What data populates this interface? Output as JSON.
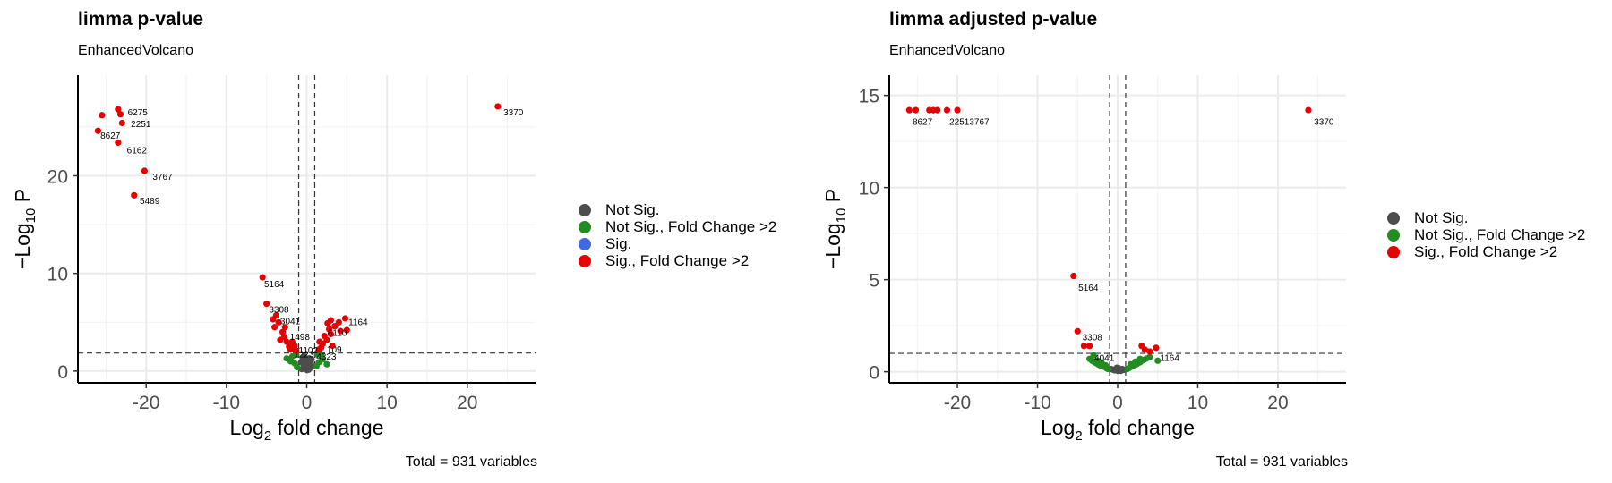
{
  "chart_data": [
    {
      "type": "scatter",
      "title": "limma p-value",
      "subtitle": "EnhancedVolcano",
      "caption": "Total = 931 variables",
      "xlabel_main": "Log",
      "xlabel_sub": "2",
      "xlabel_tail": " fold change",
      "ylabel_main": "−Log",
      "ylabel_sub": "10",
      "ylabel_tail": " P",
      "xlim": [
        -28.5,
        28.5
      ],
      "ylim": [
        -1.2,
        30.3
      ],
      "xticks": [
        -20,
        -10,
        0,
        10,
        20
      ],
      "yticks": [
        0,
        10,
        20
      ],
      "fc_cutoff": [
        -1,
        1
      ],
      "p_cutoff": 1.85,
      "legend": [
        {
          "label": "Not Sig.",
          "color": "#4d4d4d"
        },
        {
          "label": "Not Sig., Fold Change >2",
          "color": "#228b22"
        },
        {
          "label": "Sig.",
          "color": "#4169e1"
        },
        {
          "label": "Sig., Fold Change >2",
          "color": "#e60000"
        }
      ],
      "series": [
        {
          "name": "Not Sig.",
          "color": "#4d4d4d",
          "points": [
            [
              0,
              0.2
            ],
            [
              0.2,
              0.5
            ],
            [
              -0.2,
              0.6
            ],
            [
              0.4,
              0.3
            ],
            [
              -0.4,
              0.4
            ],
            [
              0.1,
              0.9
            ],
            [
              -0.1,
              1.1
            ],
            [
              0.5,
              0.8
            ],
            [
              -0.6,
              0.2
            ],
            [
              0.3,
              1.3
            ],
            [
              -0.3,
              1.5
            ],
            [
              0.7,
              0.5
            ],
            [
              -0.7,
              0.9
            ],
            [
              0.05,
              0.1
            ],
            [
              0.25,
              0.15
            ],
            [
              -0.25,
              0.25
            ],
            [
              0.6,
              1.2
            ],
            [
              -0.5,
              1.3
            ]
          ]
        },
        {
          "name": "Not Sig., Fold Change >2",
          "color": "#228b22",
          "points": [
            [
              -1.2,
              0.4
            ],
            [
              -1.5,
              0.8
            ],
            [
              -2.0,
              1.0
            ],
            [
              -1.8,
              1.5
            ],
            [
              1.2,
              0.5
            ],
            [
              1.5,
              0.9
            ],
            [
              2.0,
              1.2
            ],
            [
              1.8,
              1.6
            ],
            [
              2.5,
              0.7
            ],
            [
              -2.5,
              1.3
            ],
            [
              1.3,
              1.7
            ],
            [
              -1.3,
              1.7
            ]
          ]
        },
        {
          "name": "Sig., Fold Change >2",
          "color": "#e60000",
          "points": [
            [
              -23.5,
              26.8
            ],
            [
              -25.5,
              26.2
            ],
            [
              -23.2,
              26.3
            ],
            [
              -23.0,
              25.4
            ],
            [
              -26.0,
              24.6
            ],
            [
              -23.5,
              23.4
            ],
            [
              -20.2,
              20.5
            ],
            [
              -21.5,
              18.0
            ],
            [
              -5.5,
              9.6
            ],
            [
              -5.0,
              6.9
            ],
            [
              -3.8,
              5.7
            ],
            [
              -3.5,
              5.0
            ],
            [
              -4.0,
              4.5
            ],
            [
              -3.0,
              4.0
            ],
            [
              -2.8,
              3.5
            ],
            [
              -2.5,
              3.0
            ],
            [
              -3.3,
              3.2
            ],
            [
              -2.2,
              2.5
            ],
            [
              -2.0,
              2.2
            ],
            [
              -1.5,
              2.6
            ],
            [
              -1.8,
              3.0
            ],
            [
              -2.7,
              4.5
            ],
            [
              -4.2,
              5.3
            ],
            [
              -1.3,
              2.1
            ],
            [
              1.5,
              2.2
            ],
            [
              2.0,
              2.8
            ],
            [
              2.5,
              3.2
            ],
            [
              3.0,
              3.8
            ],
            [
              3.5,
              4.6
            ],
            [
              4.0,
              5.0
            ],
            [
              3.0,
              5.2
            ],
            [
              2.8,
              4.3
            ],
            [
              2.2,
              3.6
            ],
            [
              1.6,
              3.0
            ],
            [
              3.2,
              2.6
            ],
            [
              5.0,
              4.2
            ],
            [
              4.8,
              5.4
            ],
            [
              4.2,
              4.1
            ],
            [
              1.8,
              2.4
            ],
            [
              2.6,
              4.9
            ],
            [
              23.8,
              27.1
            ]
          ]
        }
      ],
      "labels": [
        {
          "text": "6275",
          "x": -22.3,
          "y": 26.2
        },
        {
          "text": "2251",
          "x": -21.9,
          "y": 25.0
        },
        {
          "text": "8627",
          "x": -25.7,
          "y": 23.8
        },
        {
          "text": "6162",
          "x": -22.4,
          "y": 22.3
        },
        {
          "text": "3767",
          "x": -19.2,
          "y": 19.6
        },
        {
          "text": "5489",
          "x": -20.8,
          "y": 17.1
        },
        {
          "text": "3370",
          "x": 24.5,
          "y": 26.2
        },
        {
          "text": "5164",
          "x": -5.3,
          "y": 8.6
        },
        {
          "text": "3308",
          "x": -4.7,
          "y": 6.0
        },
        {
          "text": "3041",
          "x": -3.3,
          "y": 4.8
        },
        {
          "text": "1164",
          "x": 5.2,
          "y": 4.7
        },
        {
          "text": "6110",
          "x": 2.6,
          "y": 3.6
        },
        {
          "text": "1498",
          "x": -2.1,
          "y": 3.2
        },
        {
          "text": "109",
          "x": 2.5,
          "y": 1.9
        },
        {
          "text": "4323",
          "x": 1.2,
          "y": 1.2
        },
        {
          "text": "1223",
          "x": -1.6,
          "y": 1.4
        },
        {
          "text": "1102",
          "x": -1.0,
          "y": 1.8
        }
      ]
    },
    {
      "type": "scatter",
      "title": "limma adjusted p-value",
      "subtitle": "EnhancedVolcano",
      "caption": "Total = 931 variables",
      "xlabel_main": "Log",
      "xlabel_sub": "2",
      "xlabel_tail": " fold change",
      "ylabel_main": "−Log",
      "ylabel_sub": "10",
      "ylabel_tail": " P",
      "xlim": [
        -28.5,
        28.5
      ],
      "ylim": [
        -0.6,
        16.1
      ],
      "xticks": [
        -20,
        -10,
        0,
        10,
        20
      ],
      "yticks": [
        0,
        5,
        10,
        15
      ],
      "fc_cutoff": [
        -1,
        1
      ],
      "p_cutoff": 1.0,
      "legend": [
        {
          "label": "Not Sig.",
          "color": "#4d4d4d"
        },
        {
          "label": "Not Sig., Fold Change >2",
          "color": "#228b22"
        },
        {
          "label": "Sig., Fold Change >2",
          "color": "#e60000"
        }
      ],
      "series": [
        {
          "name": "Not Sig.",
          "color": "#4d4d4d",
          "points": [
            [
              0,
              0.05
            ],
            [
              0.2,
              0.1
            ],
            [
              -0.2,
              0.1
            ],
            [
              0.4,
              0.05
            ],
            [
              -0.4,
              0.08
            ],
            [
              0.6,
              0.15
            ],
            [
              -0.6,
              0.12
            ],
            [
              0.1,
              0.2
            ],
            [
              -0.1,
              0.22
            ],
            [
              0.8,
              0.1
            ],
            [
              -0.8,
              0.15
            ]
          ]
        },
        {
          "name": "Not Sig., Fold Change >2",
          "color": "#228b22",
          "points": [
            [
              -1.2,
              0.15
            ],
            [
              -1.4,
              0.2
            ],
            [
              -1.6,
              0.25
            ],
            [
              -1.8,
              0.3
            ],
            [
              -2.0,
              0.32
            ],
            [
              -2.2,
              0.35
            ],
            [
              -2.4,
              0.4
            ],
            [
              -2.6,
              0.45
            ],
            [
              -2.8,
              0.5
            ],
            [
              -3.0,
              0.55
            ],
            [
              -3.2,
              0.6
            ],
            [
              -3.5,
              0.7
            ],
            [
              -1.5,
              0.35
            ],
            [
              -2.0,
              0.5
            ],
            [
              -2.5,
              0.6
            ],
            [
              1.2,
              0.15
            ],
            [
              1.4,
              0.2
            ],
            [
              1.6,
              0.25
            ],
            [
              1.8,
              0.3
            ],
            [
              2.0,
              0.35
            ],
            [
              2.2,
              0.38
            ],
            [
              2.4,
              0.42
            ],
            [
              2.6,
              0.48
            ],
            [
              2.8,
              0.52
            ],
            [
              3.0,
              0.6
            ],
            [
              3.3,
              0.65
            ],
            [
              3.6,
              0.72
            ],
            [
              4.0,
              0.8
            ],
            [
              1.6,
              0.4
            ],
            [
              2.2,
              0.55
            ],
            [
              2.8,
              0.7
            ],
            [
              5.0,
              0.6
            ],
            [
              -3.0,
              0.9
            ]
          ]
        },
        {
          "name": "Sig., Fold Change >2",
          "color": "#e60000",
          "points": [
            [
              -26.0,
              14.2
            ],
            [
              -25.2,
              14.2
            ],
            [
              -23.5,
              14.2
            ],
            [
              -23.0,
              14.2
            ],
            [
              -22.5,
              14.2
            ],
            [
              -21.3,
              14.2
            ],
            [
              -20.0,
              14.2
            ],
            [
              -5.5,
              5.2
            ],
            [
              -5.0,
              2.2
            ],
            [
              -4.2,
              1.4
            ],
            [
              -3.5,
              1.4
            ],
            [
              3.0,
              1.4
            ],
            [
              3.4,
              1.2
            ],
            [
              4.0,
              1.1
            ],
            [
              4.8,
              1.3
            ],
            [
              23.8,
              14.2
            ]
          ]
        }
      ],
      "labels": [
        {
          "text": "8627",
          "x": -25.6,
          "y": 13.4
        },
        {
          "text": "22513767",
          "x": -21.0,
          "y": 13.4
        },
        {
          "text": "3370",
          "x": 24.5,
          "y": 13.4
        },
        {
          "text": "5164",
          "x": -4.9,
          "y": 4.4
        },
        {
          "text": "3308",
          "x": -4.4,
          "y": 1.7
        },
        {
          "text": "4041",
          "x": -2.9,
          "y": 0.6
        },
        {
          "text": "1164",
          "x": 5.3,
          "y": 0.6
        }
      ]
    }
  ]
}
